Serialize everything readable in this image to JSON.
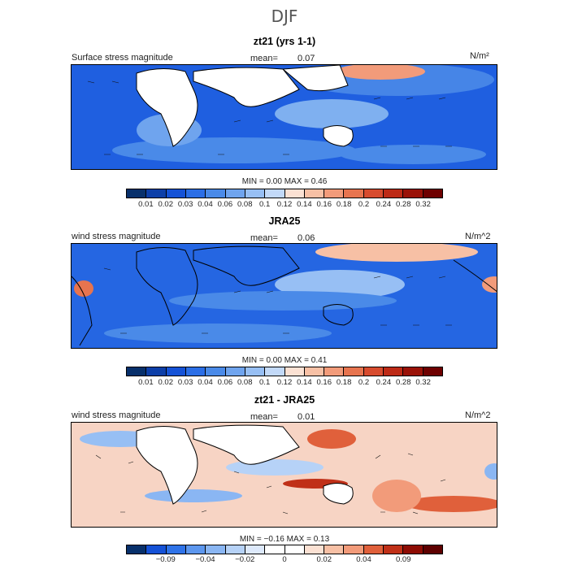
{
  "figure": {
    "title": "DJF"
  },
  "panels": [
    {
      "id": "p1",
      "title": "zt21 (yrs 1-1)",
      "left_label": "Surface stress magnitude",
      "mean_label": "mean=",
      "mean_value": "0.07",
      "units": "N/m²",
      "min_label": "MIN =",
      "min_value": "0.00",
      "max_label": "MAX =",
      "max_value": "0.46",
      "colorbar_ticks": [
        "0.01",
        "0.02",
        "0.03",
        "0.04",
        "0.06",
        "0.08",
        "0.1",
        "0.12",
        "0.14",
        "0.16",
        "0.18",
        "0.2",
        "0.24",
        "0.28",
        "0.32"
      ]
    },
    {
      "id": "p2",
      "title": "JRA25",
      "left_label": "wind stress magnitude",
      "mean_label": "mean=",
      "mean_value": "0.06",
      "units": "N/m^2",
      "min_label": "MIN =",
      "min_value": "0.00",
      "max_label": "MAX =",
      "max_value": "0.41",
      "colorbar_ticks": [
        "0.01",
        "0.02",
        "0.03",
        "0.04",
        "0.06",
        "0.08",
        "0.1",
        "0.12",
        "0.14",
        "0.16",
        "0.18",
        "0.2",
        "0.24",
        "0.28",
        "0.32"
      ]
    },
    {
      "id": "p3",
      "title": "zt21 - JRA25",
      "left_label": "wind stress magnitude",
      "mean_label": "mean=",
      "mean_value": "0.01",
      "units": "N/m^2",
      "min_label": "MIN =",
      "min_value": "−0.16",
      "max_label": "MAX =",
      "max_value": "0.13",
      "colorbar_ticks": [
        "−0.09",
        "−0.04",
        "−0.02",
        "0",
        "0.02",
        "0.04",
        "0.09"
      ]
    }
  ],
  "colors": {
    "magnitude_scale": [
      "#08306b",
      "#0d3fa8",
      "#1552d6",
      "#2b6ee6",
      "#4a8ae8",
      "#6fa4ee",
      "#97bff4",
      "#c2d9f8",
      "#fbe1d3",
      "#f7c0a5",
      "#f29b7a",
      "#e7744f",
      "#d74b2e",
      "#bd2a16",
      "#9a1208",
      "#6e0000"
    ],
    "difference_scale": [
      "#08306b",
      "#1552d6",
      "#2f73e8",
      "#5d97ee",
      "#8ab6f3",
      "#b6d2f7",
      "#dde9fb",
      "#ffffff",
      "#ffffff",
      "#fbe1d3",
      "#f7c0a5",
      "#f29b7a",
      "#e0603b",
      "#c03018",
      "#8e0c04",
      "#5e0000"
    ],
    "land": "#ffffff",
    "coast": "#000000",
    "vector": "#111111"
  }
}
